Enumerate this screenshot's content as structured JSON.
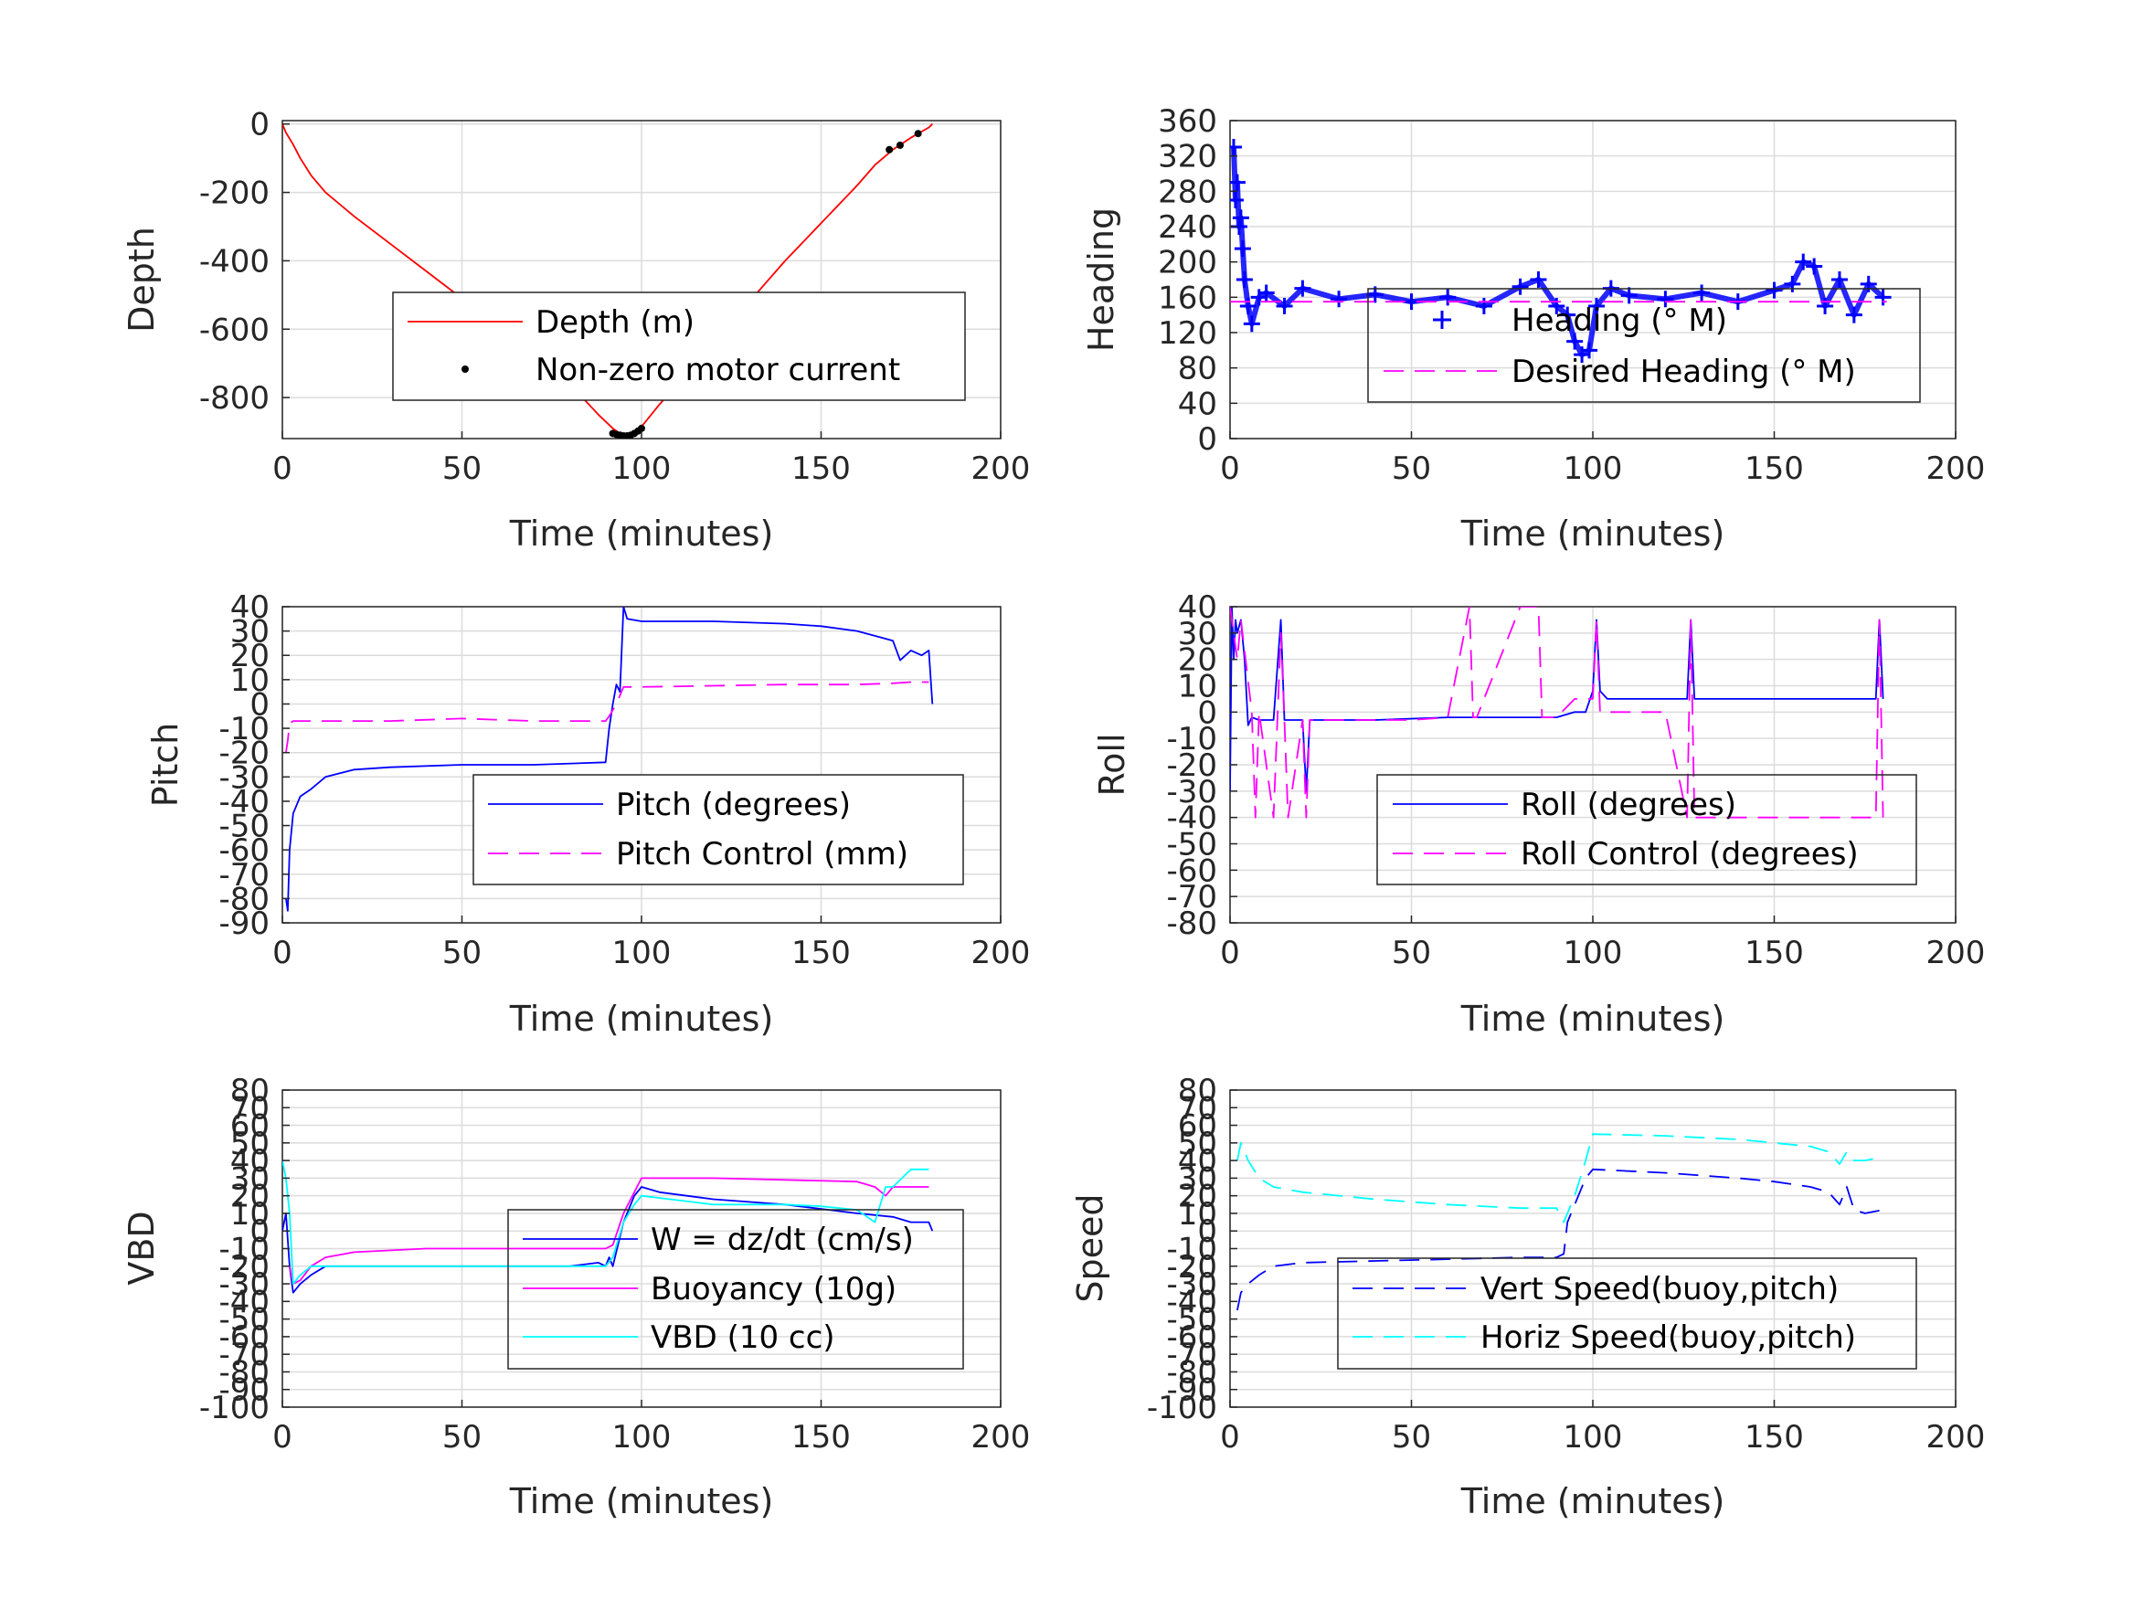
{
  "chart_data": [
    {
      "id": "depth",
      "type": "line",
      "xlabel": "Time (minutes)",
      "ylabel": "Depth",
      "xlim": [
        0,
        200
      ],
      "ylim": [
        -920,
        10
      ],
      "xticks": [
        0,
        50,
        100,
        150,
        200
      ],
      "yticks": [
        0,
        -200,
        -400,
        -600,
        -800
      ],
      "yticklabels": [
        "0",
        "-200",
        "-400",
        "-600",
        "-800"
      ],
      "grid": true,
      "legend_position": "right-middle",
      "series": [
        {
          "name": "Depth (m)",
          "color": "#ff0000",
          "style": "solid",
          "x": [
            0,
            1,
            3,
            5,
            8,
            12,
            20,
            30,
            40,
            50,
            60,
            70,
            80,
            88,
            92,
            94,
            96,
            98,
            100,
            105,
            110,
            120,
            130,
            140,
            150,
            160,
            165,
            170,
            175,
            180,
            181
          ],
          "y": [
            0,
            -25,
            -60,
            -100,
            -150,
            -200,
            -270,
            -350,
            -430,
            -510,
            -590,
            -670,
            -760,
            -850,
            -890,
            -905,
            -910,
            -900,
            -885,
            -820,
            -760,
            -640,
            -520,
            -400,
            -290,
            -180,
            -120,
            -75,
            -40,
            -10,
            0
          ]
        },
        {
          "name": "Non-zero motor current",
          "color": "#000000",
          "style": "markers",
          "x": [
            92,
            93,
            94,
            95,
            96,
            97,
            98,
            99,
            100,
            169,
            172,
            177
          ],
          "y": [
            -905,
            -908,
            -910,
            -912,
            -912,
            -910,
            -905,
            -898,
            -890,
            -75,
            -62,
            -28
          ]
        }
      ]
    },
    {
      "id": "heading",
      "type": "line",
      "xlabel": "Time (minutes)",
      "ylabel": "Heading",
      "xlim": [
        0,
        200
      ],
      "ylim": [
        0,
        360
      ],
      "xticks": [
        0,
        50,
        100,
        150,
        200
      ],
      "yticks": [
        0,
        40,
        80,
        120,
        160,
        200,
        240,
        280,
        320,
        360
      ],
      "yticklabels": [
        "0",
        "40",
        "80",
        "120",
        "160",
        "200",
        "240",
        "280",
        "320",
        "360"
      ],
      "grid": true,
      "legend_position": "right-middle",
      "series": [
        {
          "name": "Heading (° M)",
          "color": "#0000ff",
          "style": "plus-markers",
          "x": [
            1,
            1.5,
            2,
            2.5,
            3,
            3.5,
            4,
            5,
            6,
            8,
            10,
            15,
            20,
            30,
            40,
            50,
            60,
            70,
            80,
            85,
            90,
            93,
            95,
            97,
            99,
            101,
            105,
            110,
            120,
            130,
            140,
            150,
            155,
            158,
            161,
            164,
            168,
            172,
            176,
            180
          ],
          "y": [
            330,
            270,
            290,
            240,
            250,
            215,
            180,
            150,
            130,
            160,
            165,
            150,
            170,
            158,
            163,
            155,
            160,
            150,
            172,
            180,
            150,
            140,
            110,
            95,
            100,
            150,
            170,
            162,
            158,
            165,
            155,
            168,
            175,
            200,
            195,
            150,
            180,
            140,
            175,
            160
          ]
        },
        {
          "name": "Desired Heading (° M)",
          "color": "#ff00ff",
          "style": "dashed",
          "x": [
            0,
            181
          ],
          "y": [
            155,
            155
          ]
        }
      ]
    },
    {
      "id": "pitch",
      "type": "line",
      "xlabel": "Time (minutes)",
      "ylabel": "Pitch",
      "xlim": [
        0,
        200
      ],
      "ylim": [
        -90,
        40
      ],
      "xticks": [
        0,
        50,
        100,
        150,
        200
      ],
      "yticks": [
        40,
        30,
        20,
        10,
        0,
        -10,
        -20,
        -30,
        -40,
        -50,
        -60,
        -70,
        -80,
        -90
      ],
      "yticklabels": [
        "40",
        "30",
        "20",
        "10",
        "0",
        "-10",
        "-20",
        "-30",
        "-40",
        "-50",
        "-60",
        "-70",
        "-80",
        "-90"
      ],
      "grid": true,
      "legend_position": "right-middle",
      "series": [
        {
          "name": "Pitch (degrees)",
          "color": "#0000ff",
          "style": "solid",
          "x": [
            1,
            1.5,
            2,
            3,
            5,
            8,
            12,
            20,
            30,
            50,
            70,
            90,
            91,
            92,
            93,
            94,
            95,
            96,
            100,
            120,
            140,
            150,
            160,
            165,
            170,
            172,
            175,
            178,
            180,
            181
          ],
          "y": [
            -80,
            -85,
            -60,
            -45,
            -38,
            -35,
            -30,
            -27,
            -26,
            -25,
            -25,
            -24,
            -10,
            0,
            8,
            5,
            40,
            35,
            34,
            34,
            33,
            32,
            30,
            28,
            26,
            18,
            22,
            20,
            22,
            0
          ]
        },
        {
          "name": "Pitch Control (mm)",
          "color": "#ff00ff",
          "style": "dashed",
          "x": [
            1,
            1.5,
            2,
            3,
            10,
            30,
            50,
            70,
            90,
            91,
            93,
            95,
            100,
            120,
            140,
            160,
            170,
            175,
            180
          ],
          "y": [
            -20,
            -15,
            -8,
            -7,
            -7,
            -7,
            -6,
            -7,
            -7,
            -5,
            0,
            7,
            7,
            7.5,
            8,
            8,
            8.5,
            9,
            9
          ]
        }
      ]
    },
    {
      "id": "roll",
      "type": "line",
      "xlabel": "Time (minutes)",
      "ylabel": "Roll",
      "xlim": [
        0,
        200
      ],
      "ylim": [
        -80,
        40
      ],
      "xticks": [
        0,
        50,
        100,
        150,
        200
      ],
      "yticks": [
        40,
        30,
        20,
        10,
        0,
        -10,
        -20,
        -30,
        -40,
        -50,
        -60,
        -70,
        -80
      ],
      "yticklabels": [
        "40",
        "30",
        "20",
        "10",
        "0",
        "-10",
        "-20",
        "-30",
        "-40",
        "-50",
        "-60",
        "-70",
        "-80"
      ],
      "grid": true,
      "legend_position": "right-middle",
      "series": [
        {
          "name": "Roll (degrees)",
          "color": "#0000ff",
          "style": "solid",
          "x": [
            0,
            0.5,
            1,
            1.5,
            2,
            3,
            4,
            5,
            6,
            8,
            12,
            14,
            15,
            16,
            20,
            21,
            22,
            23,
            40,
            60,
            80,
            90,
            95,
            98,
            100,
            101,
            102,
            104,
            110,
            120,
            126,
            127,
            128,
            130,
            140,
            150,
            160,
            170,
            178,
            179,
            180
          ],
          "y": [
            -30,
            40,
            20,
            35,
            30,
            35,
            20,
            -5,
            -2,
            -3,
            -3,
            35,
            -3,
            -3,
            -3,
            -30,
            -3,
            -3,
            -3,
            -2,
            -2,
            -2,
            0,
            0,
            8,
            35,
            8,
            5,
            5,
            5,
            5,
            35,
            5,
            5,
            5,
            5,
            5,
            5,
            5,
            35,
            5
          ]
        },
        {
          "name": "Roll Control (degrees)",
          "color": "#ff00ff",
          "style": "dashed",
          "x": [
            0,
            1,
            2,
            3,
            6,
            7,
            8,
            12,
            14,
            15,
            16,
            20,
            21,
            22,
            23,
            40,
            45,
            50,
            60,
            66,
            67,
            68,
            80,
            85,
            86,
            90,
            95,
            100,
            101,
            102,
            110,
            120,
            126,
            127,
            128,
            140,
            150,
            160,
            170,
            178,
            179,
            180
          ],
          "y": [
            40,
            30,
            20,
            35,
            0,
            -40,
            0,
            -40,
            30,
            -3,
            -40,
            -3,
            -40,
            -3,
            -3,
            -3,
            -3,
            -3,
            -2,
            40,
            -2,
            -2,
            40,
            40,
            -2,
            -2,
            5,
            5,
            35,
            0,
            0,
            0,
            -40,
            35,
            -40,
            -40,
            -40,
            -40,
            -40,
            -40,
            35,
            -40
          ]
        }
      ]
    },
    {
      "id": "vbd",
      "type": "line",
      "xlabel": "Time (minutes)",
      "ylabel": "VBD",
      "xlim": [
        0,
        200
      ],
      "ylim": [
        -100,
        80
      ],
      "xticks": [
        0,
        50,
        100,
        150,
        200
      ],
      "yticks": [
        80,
        70,
        60,
        50,
        40,
        30,
        20,
        10,
        0,
        -10,
        -20,
        -30,
        -40,
        -50,
        -60,
        -70,
        -80,
        -90,
        -100
      ],
      "yticklabels": [
        "80",
        "70",
        "60",
        "50",
        "40",
        "30",
        "20",
        "10",
        "0",
        "-10",
        "-20",
        "-30",
        "-40",
        "-50",
        "-60",
        "-70",
        "-80",
        "-90",
        "-100"
      ],
      "grid": true,
      "legend_position": "right-middle",
      "series": [
        {
          "name": "W = dz/dt (cm/s)",
          "color": "#0000ff",
          "style": "solid",
          "x": [
            0,
            1,
            2,
            3,
            5,
            8,
            12,
            20,
            40,
            60,
            80,
            88,
            90,
            91,
            92,
            95,
            98,
            100,
            105,
            120,
            140,
            160,
            170,
            175,
            180,
            181
          ],
          "y": [
            0,
            10,
            -20,
            -35,
            -30,
            -25,
            -20,
            -20,
            -20,
            -20,
            -20,
            -18,
            -20,
            -15,
            -20,
            5,
            20,
            25,
            22,
            18,
            15,
            10,
            8,
            5,
            5,
            0
          ]
        },
        {
          "name": "Buoyancy (10g)",
          "color": "#ff00ff",
          "style": "solid",
          "x": [
            2,
            3,
            5,
            8,
            12,
            20,
            40,
            60,
            80,
            90,
            92,
            95,
            100,
            120,
            140,
            160,
            165,
            168,
            170,
            175,
            180
          ],
          "y": [
            -20,
            -30,
            -28,
            -20,
            -15,
            -12,
            -10,
            -10,
            -10,
            -10,
            -8,
            10,
            30,
            30,
            29,
            28,
            25,
            20,
            25,
            25,
            25
          ]
        },
        {
          "name": "VBD (10 cc)",
          "color": "#00ffff",
          "style": "solid",
          "x": [
            0,
            1,
            2,
            3,
            5,
            8,
            12,
            20,
            40,
            60,
            80,
            90,
            92,
            95,
            98,
            100,
            120,
            140,
            150,
            160,
            165,
            168,
            170,
            175,
            180
          ],
          "y": [
            40,
            30,
            10,
            -30,
            -25,
            -20,
            -20,
            -20,
            -20,
            -20,
            -20,
            -20,
            -15,
            5,
            15,
            20,
            15,
            15,
            14,
            12,
            5,
            25,
            25,
            35,
            35
          ]
        }
      ]
    },
    {
      "id": "speed",
      "type": "line",
      "xlabel": "Time (minutes)",
      "ylabel": "Speed",
      "xlim": [
        0,
        200
      ],
      "ylim": [
        -100,
        80
      ],
      "xticks": [
        0,
        50,
        100,
        150,
        200
      ],
      "yticks": [
        80,
        70,
        60,
        50,
        40,
        30,
        20,
        10,
        0,
        -10,
        -20,
        -30,
        -40,
        -50,
        -60,
        -70,
        -80,
        -90,
        -100
      ],
      "yticklabels": [
        "80",
        "70",
        "60",
        "50",
        "40",
        "30",
        "20",
        "10",
        "0",
        "-10",
        "-20",
        "-30",
        "-40",
        "-50",
        "-60",
        "-70",
        "-80",
        "-90",
        "-100"
      ],
      "grid": true,
      "legend_position": "right-middle",
      "series": [
        {
          "name": "Vert Speed(buoy,pitch)",
          "color": "#0000ff",
          "style": "dashed",
          "x": [
            2,
            3,
            5,
            8,
            12,
            20,
            40,
            60,
            80,
            90,
            92,
            93,
            95,
            98,
            100,
            120,
            140,
            150,
            160,
            165,
            168,
            170,
            172,
            175,
            180
          ],
          "y": [
            -45,
            -35,
            -30,
            -25,
            -20,
            -18,
            -17,
            -16,
            -15,
            -15,
            -13,
            5,
            15,
            30,
            35,
            33,
            30,
            28,
            25,
            22,
            15,
            25,
            12,
            10,
            12
          ]
        },
        {
          "name": "Horiz Speed(buoy,pitch)",
          "color": "#00ffff",
          "style": "dashed",
          "x": [
            2,
            3,
            5,
            8,
            12,
            20,
            40,
            60,
            80,
            90,
            92,
            93,
            95,
            98,
            100,
            120,
            140,
            160,
            165,
            168,
            170,
            172,
            175,
            180
          ],
          "y": [
            40,
            50,
            40,
            30,
            25,
            22,
            18,
            15,
            13,
            13,
            5,
            10,
            20,
            40,
            55,
            54,
            52,
            48,
            45,
            38,
            45,
            40,
            40,
            42
          ]
        }
      ]
    }
  ]
}
